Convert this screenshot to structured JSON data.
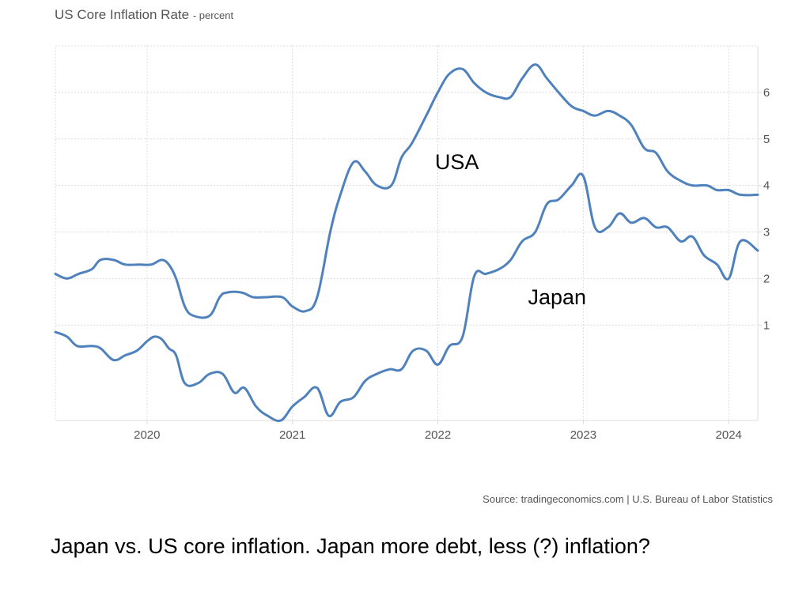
{
  "title": "US Core Inflation Rate",
  "title_unit": "- percent",
  "source": "Source: tradingeconomics.com | U.S. Bureau of Labor Statistics",
  "caption": "Japan vs. US core inflation. Japan more debt, less (?) inflation?",
  "colors": {
    "line": "#4f81bd",
    "grid": "#dcdcdc",
    "axis_text": "#555555"
  },
  "chart_data": {
    "type": "line",
    "title": "US Core Inflation Rate",
    "ylabel": "percent",
    "xlim": [
      2019.37,
      2024.2
    ],
    "ylim": [
      -1.05,
      7.0
    ],
    "yticks": [
      1,
      2,
      3,
      4,
      5,
      6
    ],
    "xticks": [
      2020,
      2021,
      2022,
      2023,
      2024
    ],
    "grid": true,
    "series": [
      {
        "name": "USA",
        "points": [
          [
            2019.37,
            2.1
          ],
          [
            2019.45,
            2.0
          ],
          [
            2019.53,
            2.1
          ],
          [
            2019.62,
            2.2
          ],
          [
            2019.68,
            2.4
          ],
          [
            2019.77,
            2.4
          ],
          [
            2019.85,
            2.3
          ],
          [
            2019.95,
            2.3
          ],
          [
            2020.03,
            2.3
          ],
          [
            2020.1,
            2.4
          ],
          [
            2020.15,
            2.3
          ],
          [
            2020.2,
            2.0
          ],
          [
            2020.26,
            1.4
          ],
          [
            2020.32,
            1.2
          ],
          [
            2020.43,
            1.2
          ],
          [
            2020.5,
            1.6
          ],
          [
            2020.55,
            1.7
          ],
          [
            2020.65,
            1.7
          ],
          [
            2020.73,
            1.6
          ],
          [
            2020.82,
            1.6
          ],
          [
            2020.93,
            1.6
          ],
          [
            2021.0,
            1.4
          ],
          [
            2021.09,
            1.3
          ],
          [
            2021.17,
            1.6
          ],
          [
            2021.26,
            3.0
          ],
          [
            2021.33,
            3.8
          ],
          [
            2021.42,
            4.5
          ],
          [
            2021.5,
            4.3
          ],
          [
            2021.58,
            4.0
          ],
          [
            2021.68,
            4.0
          ],
          [
            2021.75,
            4.6
          ],
          [
            2021.82,
            4.9
          ],
          [
            2021.92,
            5.5
          ],
          [
            2022.0,
            6.0
          ],
          [
            2022.08,
            6.4
          ],
          [
            2022.17,
            6.5
          ],
          [
            2022.25,
            6.2
          ],
          [
            2022.33,
            6.0
          ],
          [
            2022.42,
            5.9
          ],
          [
            2022.5,
            5.9
          ],
          [
            2022.58,
            6.3
          ],
          [
            2022.67,
            6.6
          ],
          [
            2022.75,
            6.3
          ],
          [
            2022.83,
            6.0
          ],
          [
            2022.92,
            5.7
          ],
          [
            2023.0,
            5.6
          ],
          [
            2023.08,
            5.5
          ],
          [
            2023.17,
            5.6
          ],
          [
            2023.25,
            5.5
          ],
          [
            2023.33,
            5.3
          ],
          [
            2023.42,
            4.8
          ],
          [
            2023.5,
            4.7
          ],
          [
            2023.58,
            4.3
          ],
          [
            2023.67,
            4.1
          ],
          [
            2023.75,
            4.0
          ],
          [
            2023.85,
            4.0
          ],
          [
            2023.92,
            3.9
          ],
          [
            2024.0,
            3.9
          ],
          [
            2024.08,
            3.8
          ],
          [
            2024.2,
            3.8
          ]
        ]
      },
      {
        "name": "Japan",
        "points": [
          [
            2019.37,
            0.85
          ],
          [
            2019.45,
            0.75
          ],
          [
            2019.52,
            0.55
          ],
          [
            2019.62,
            0.55
          ],
          [
            2019.68,
            0.5
          ],
          [
            2019.77,
            0.25
          ],
          [
            2019.85,
            0.35
          ],
          [
            2019.93,
            0.45
          ],
          [
            2020.0,
            0.65
          ],
          [
            2020.05,
            0.75
          ],
          [
            2020.1,
            0.7
          ],
          [
            2020.15,
            0.5
          ],
          [
            2020.2,
            0.35
          ],
          [
            2020.26,
            -0.25
          ],
          [
            2020.35,
            -0.25
          ],
          [
            2020.43,
            -0.05
          ],
          [
            2020.52,
            -0.05
          ],
          [
            2020.6,
            -0.45
          ],
          [
            2020.67,
            -0.35
          ],
          [
            2020.75,
            -0.75
          ],
          [
            2020.83,
            -0.95
          ],
          [
            2020.92,
            -1.05
          ],
          [
            2021.0,
            -0.75
          ],
          [
            2021.08,
            -0.55
          ],
          [
            2021.17,
            -0.35
          ],
          [
            2021.25,
            -0.95
          ],
          [
            2021.33,
            -0.65
          ],
          [
            2021.42,
            -0.55
          ],
          [
            2021.5,
            -0.2
          ],
          [
            2021.58,
            -0.05
          ],
          [
            2021.67,
            0.05
          ],
          [
            2021.75,
            0.05
          ],
          [
            2021.83,
            0.45
          ],
          [
            2021.92,
            0.45
          ],
          [
            2022.0,
            0.15
          ],
          [
            2022.08,
            0.55
          ],
          [
            2022.17,
            0.75
          ],
          [
            2022.25,
            2.05
          ],
          [
            2022.33,
            2.1
          ],
          [
            2022.42,
            2.2
          ],
          [
            2022.5,
            2.4
          ],
          [
            2022.58,
            2.8
          ],
          [
            2022.67,
            3.0
          ],
          [
            2022.75,
            3.6
          ],
          [
            2022.83,
            3.7
          ],
          [
            2022.92,
            4.0
          ],
          [
            2023.0,
            4.2
          ],
          [
            2023.08,
            3.1
          ],
          [
            2023.17,
            3.1
          ],
          [
            2023.25,
            3.4
          ],
          [
            2023.33,
            3.2
          ],
          [
            2023.42,
            3.3
          ],
          [
            2023.5,
            3.1
          ],
          [
            2023.58,
            3.1
          ],
          [
            2023.67,
            2.8
          ],
          [
            2023.75,
            2.9
          ],
          [
            2023.83,
            2.5
          ],
          [
            2023.92,
            2.3
          ],
          [
            2024.0,
            2.0
          ],
          [
            2024.08,
            2.8
          ],
          [
            2024.2,
            2.6
          ]
        ]
      }
    ],
    "annotations": [
      {
        "text": "USA",
        "x": 2021.98,
        "y": 4.35
      },
      {
        "text": "Japan",
        "x": 2022.62,
        "y": 1.45
      }
    ]
  }
}
